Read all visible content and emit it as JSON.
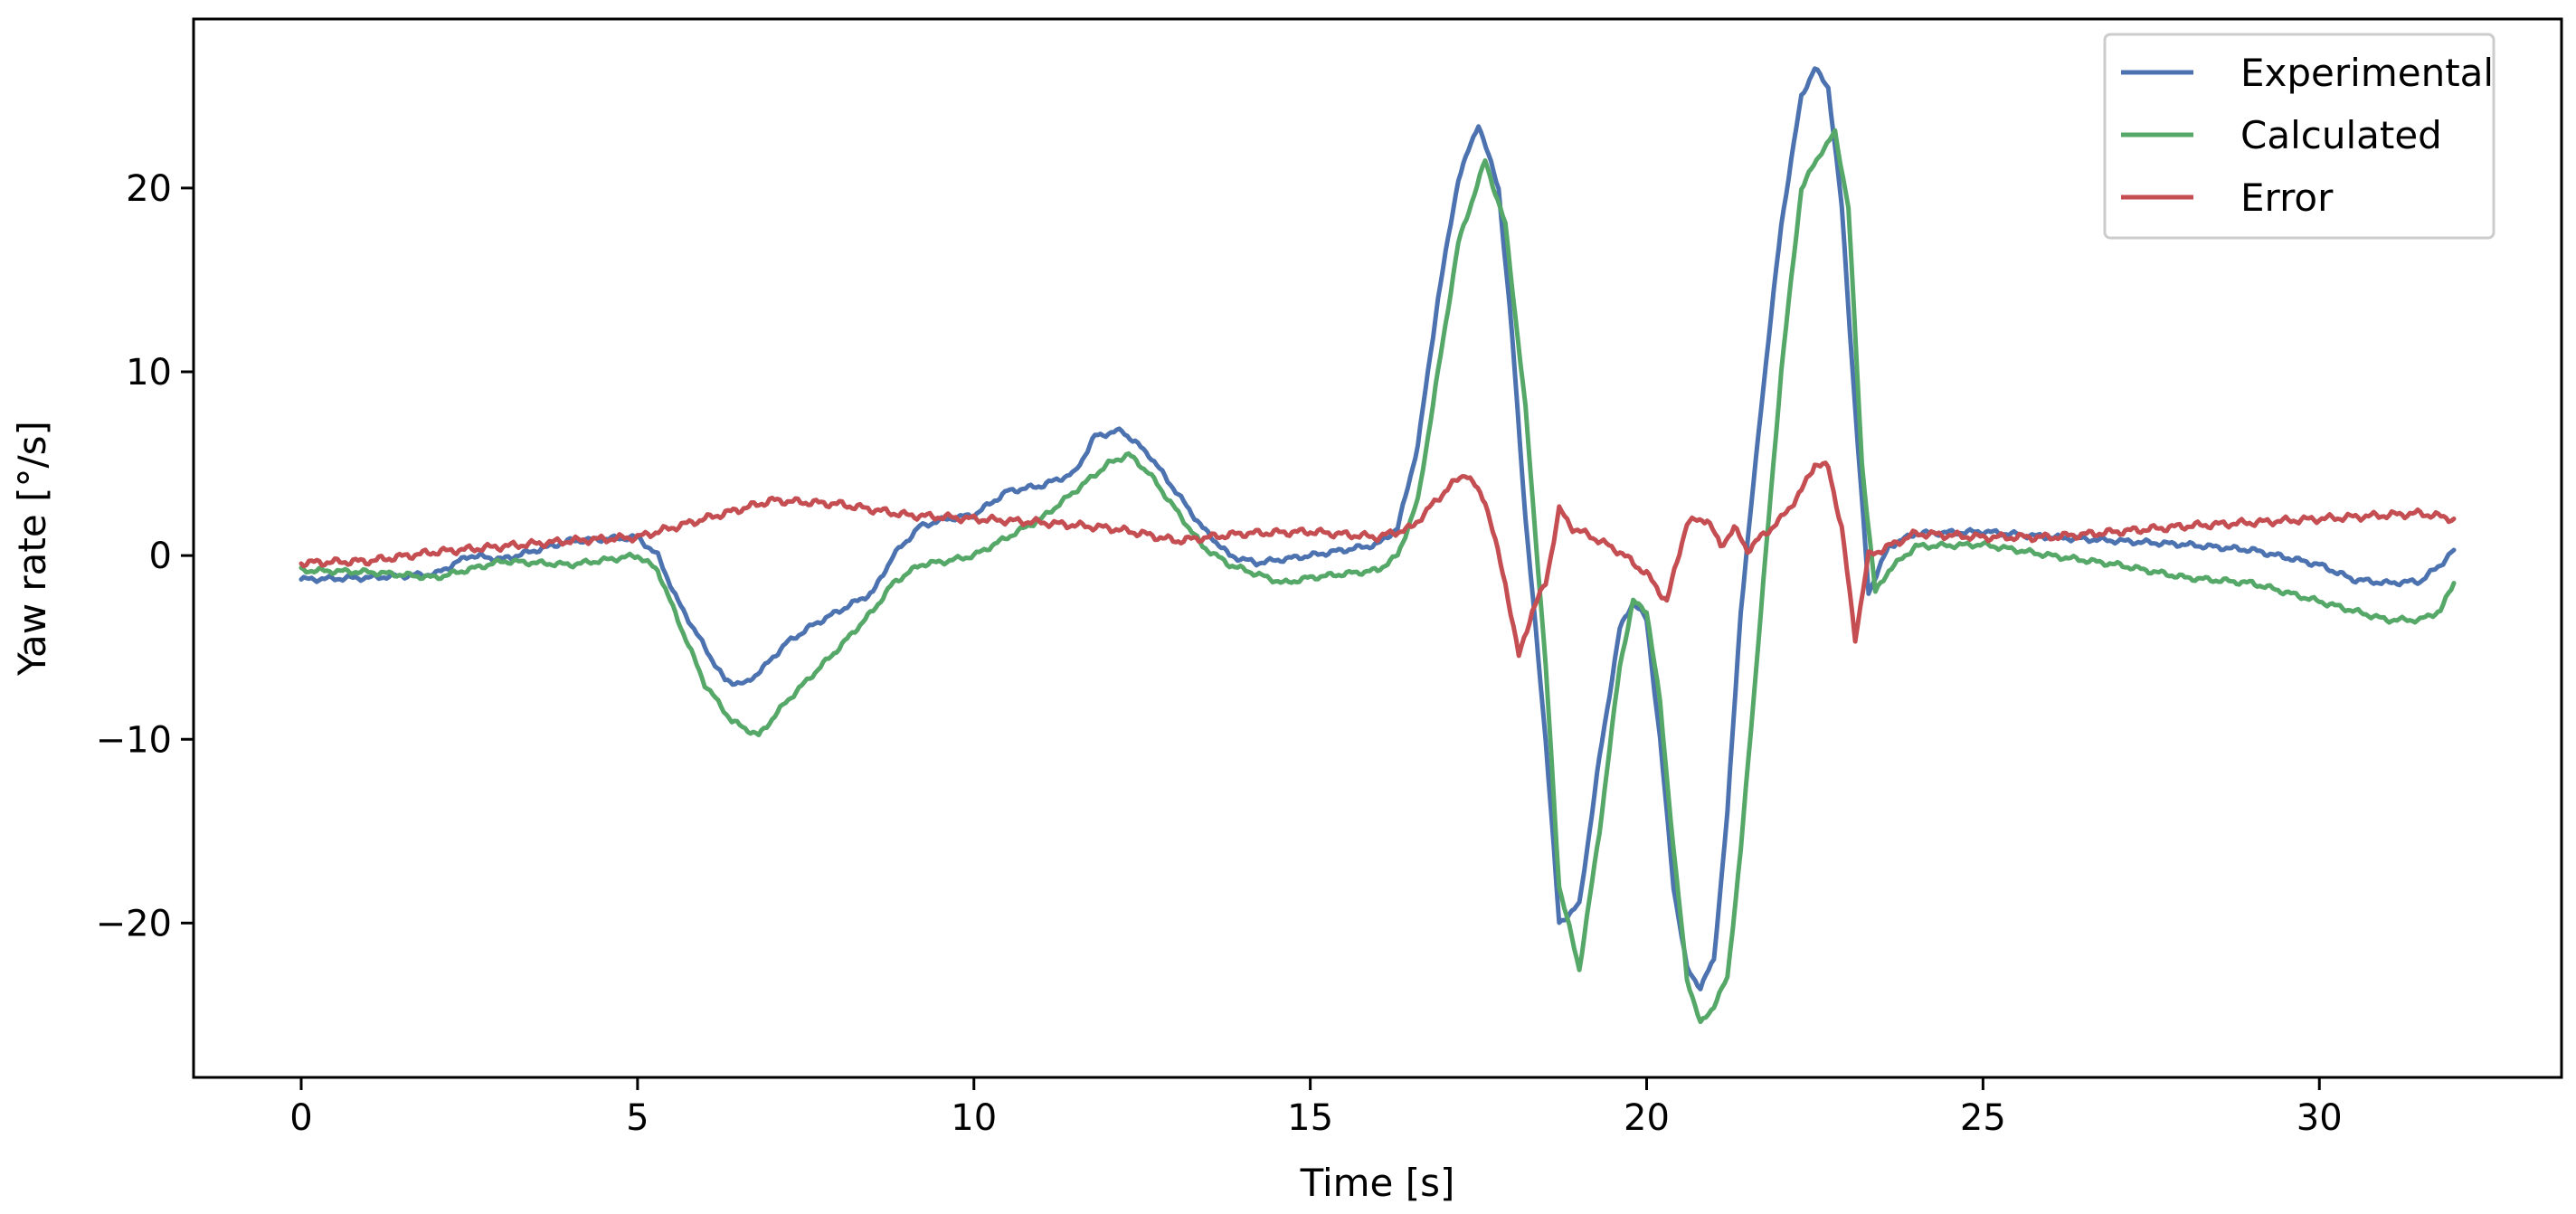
{
  "chart_data": {
    "type": "line",
    "title": "",
    "xlabel": "Time [s]",
    "ylabel": "Yaw rate [°/s]",
    "xlim": [
      -1.6,
      33.6
    ],
    "ylim": [
      -28.4,
      29.2
    ],
    "xticks": [
      0,
      5,
      10,
      15,
      20,
      25,
      30
    ],
    "yticks": [
      -20,
      -10,
      0,
      10,
      20
    ],
    "xtick_labels": [
      "0",
      "5",
      "10",
      "15",
      "20",
      "25",
      "30"
    ],
    "ytick_labels": [
      "−20",
      "−10",
      "0",
      "10",
      "20"
    ],
    "grid": false,
    "legend_position": "top-right",
    "series": [
      {
        "name": "Experimental",
        "color": "#4c72b0",
        "x": [
          0,
          1,
          2,
          2.5,
          3,
          4,
          5,
          5.3,
          5.6,
          6,
          6.3,
          6.6,
          6.9,
          7.2,
          7.6,
          8,
          8.5,
          8.8,
          9.2,
          9.6,
          10,
          10.5,
          11,
          11.5,
          11.8,
          12.2,
          12.6,
          13,
          13.4,
          13.8,
          14.2,
          14.6,
          15,
          15.5,
          16,
          16.3,
          16.6,
          16.9,
          17.2,
          17.5,
          17.8,
          18,
          18.2,
          18.5,
          18.7,
          19,
          19.3,
          19.6,
          19.8,
          20,
          20.2,
          20.4,
          20.6,
          20.8,
          21,
          21.2,
          21.4,
          21.7,
          22,
          22.3,
          22.5,
          22.7,
          22.9,
          23.1,
          23.3,
          23.6,
          24,
          25,
          26,
          27,
          28,
          29,
          30,
          30.5,
          31,
          31.5,
          31.8,
          32
        ],
        "values": [
          -1.3,
          -1.2,
          -1.0,
          0.0,
          -0.2,
          0.8,
          1.0,
          0.0,
          -2.5,
          -5.0,
          -6.8,
          -7.0,
          -6.0,
          -4.8,
          -3.8,
          -3.0,
          -2.0,
          0.0,
          1.6,
          2.0,
          2.2,
          3.5,
          3.8,
          4.5,
          6.5,
          6.8,
          5.5,
          3.5,
          1.5,
          0.0,
          -0.4,
          -0.2,
          0.0,
          0.3,
          0.6,
          1.5,
          6.0,
          14.0,
          20.5,
          23.5,
          20.0,
          12.0,
          2.0,
          -10.0,
          -20.0,
          -19.0,
          -11.0,
          -4.0,
          -2.5,
          -3.5,
          -10.0,
          -18.0,
          -22.5,
          -23.5,
          -22.0,
          -14.0,
          -3.0,
          8.0,
          18.0,
          25.0,
          26.5,
          25.5,
          19.0,
          8.0,
          -2.0,
          0.5,
          1.2,
          1.3,
          1.0,
          0.8,
          0.6,
          0.3,
          -0.5,
          -1.3,
          -1.5,
          -1.4,
          -0.5,
          0.3
        ]
      },
      {
        "name": "Calculated",
        "color": "#55a868",
        "x": [
          0,
          1,
          2,
          3,
          4,
          5,
          5.3,
          5.6,
          6,
          6.4,
          6.8,
          7.2,
          7.6,
          8,
          8.5,
          8.8,
          9.2,
          9.6,
          10,
          10.5,
          11,
          11.5,
          12,
          12.3,
          12.6,
          13,
          13.4,
          13.8,
          14.2,
          14.6,
          15,
          15.5,
          16,
          16.3,
          16.6,
          16.9,
          17.2,
          17.6,
          17.9,
          18.2,
          18.5,
          18.7,
          19,
          19.3,
          19.6,
          19.8,
          20,
          20.2,
          20.4,
          20.6,
          20.8,
          21,
          21.2,
          21.4,
          21.7,
          22,
          22.3,
          22.6,
          22.8,
          23,
          23.2,
          23.4,
          23.6,
          24,
          25,
          26,
          27,
          28,
          29,
          30,
          30.5,
          31,
          31.5,
          31.8,
          32
        ],
        "values": [
          -0.8,
          -0.9,
          -1.2,
          -0.3,
          -0.5,
          0.0,
          -0.8,
          -3.5,
          -7.0,
          -9.0,
          -9.8,
          -8.0,
          -6.5,
          -5.0,
          -3.0,
          -1.5,
          -0.5,
          -0.3,
          0.0,
          1.0,
          2.0,
          3.5,
          5.0,
          5.5,
          4.5,
          2.5,
          0.5,
          -0.5,
          -1.0,
          -1.5,
          -1.2,
          -1.0,
          -0.8,
          0.0,
          3.0,
          10.0,
          17.0,
          21.5,
          18.0,
          8.0,
          -6.0,
          -18.0,
          -22.5,
          -15.0,
          -6.0,
          -2.5,
          -3.0,
          -8.0,
          -16.0,
          -23.0,
          -25.5,
          -24.5,
          -23.0,
          -16.0,
          -3.0,
          10.0,
          20.0,
          22.0,
          23.0,
          19.0,
          5.0,
          -2.0,
          -0.8,
          0.5,
          0.6,
          0.0,
          -0.5,
          -1.2,
          -1.5,
          -2.5,
          -3.0,
          -3.5,
          -3.5,
          -3.0,
          -1.5
        ]
      },
      {
        "name": "Error",
        "color": "#c44e52",
        "x": [
          0,
          1,
          2,
          3,
          4,
          5,
          6,
          7,
          8,
          9,
          10,
          11,
          12,
          12.5,
          13,
          14,
          15,
          16,
          16.5,
          17,
          17.3,
          17.6,
          17.9,
          18.1,
          18.3,
          18.5,
          18.7,
          18.9,
          19.2,
          19.6,
          20,
          20.3,
          20.6,
          20.9,
          21.1,
          21.3,
          21.5,
          21.7,
          22,
          22.3,
          22.5,
          22.7,
          22.9,
          23.1,
          23.3,
          23.6,
          24,
          25,
          26,
          27,
          28,
          29,
          30,
          31,
          31.5,
          32
        ],
        "values": [
          -0.4,
          -0.3,
          0.2,
          0.5,
          0.8,
          1.0,
          2.0,
          3.0,
          2.8,
          2.2,
          2.0,
          1.8,
          1.5,
          1.2,
          0.8,
          1.2,
          1.3,
          1.0,
          1.5,
          3.5,
          4.5,
          3.0,
          -1.5,
          -5.5,
          -3.0,
          -1.5,
          2.5,
          1.5,
          1.0,
          0.2,
          -1.0,
          -2.5,
          1.8,
          2.0,
          0.5,
          1.5,
          0.3,
          1.0,
          2.0,
          3.5,
          5.0,
          4.8,
          1.5,
          -4.5,
          0.0,
          0.5,
          1.2,
          1.0,
          1.0,
          1.3,
          1.6,
          1.8,
          2.0,
          2.2,
          2.3,
          2.0
        ]
      }
    ]
  }
}
